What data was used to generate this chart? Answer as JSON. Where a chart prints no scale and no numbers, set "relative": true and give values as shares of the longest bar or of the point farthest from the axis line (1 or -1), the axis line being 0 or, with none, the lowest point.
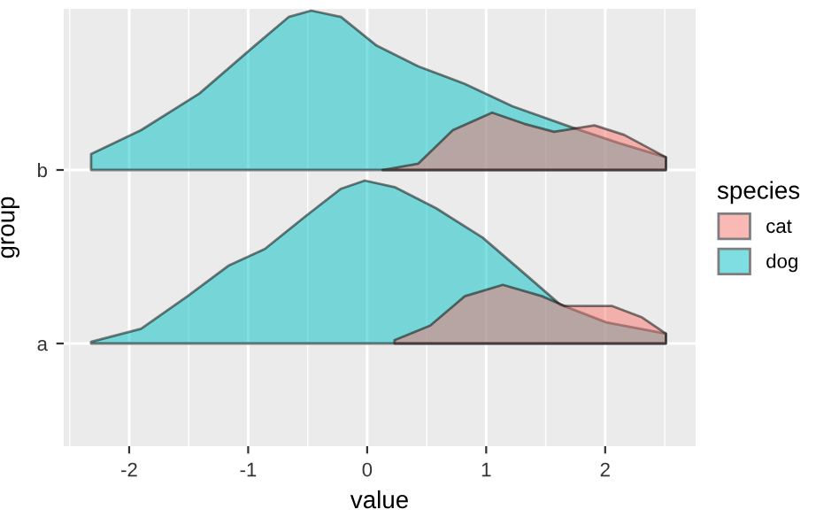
{
  "chart_data": [
    {
      "type": "area",
      "relative": true,
      "ylabel": "group",
      "y_categories": [
        "b"
      ],
      "legend_title": "species",
      "legend": "right",
      "grid": true,
      "tick_labels": "y",
      "xlim": [
        -2.55,
        2.76
      ],
      "xticks": [
        -2,
        -1,
        0,
        1,
        2
      ],
      "series": [
        {
          "name": "dog",
          "color": "#00bfc4",
          "x": [
            -2.32,
            -1.9,
            -1.41,
            -0.96,
            -0.66,
            -0.47,
            -0.22,
            0.08,
            0.43,
            0.82,
            1.22,
            1.71,
            2.11,
            2.51
          ],
          "values": [
            0.1,
            0.25,
            0.48,
            0.77,
            0.96,
            1,
            0.96,
            0.78,
            0.65,
            0.54,
            0.4,
            0.27,
            0.17,
            0.08
          ]
        },
        {
          "name": "cat",
          "color": "#f8766d",
          "x": [
            0.13,
            0.43,
            0.72,
            1.05,
            1.32,
            1.57,
            1.91,
            2.16,
            2.51
          ],
          "values": [
            0,
            0.04,
            0.25,
            0.36,
            0.29,
            0.24,
            0.28,
            0.22,
            0.08
          ]
        }
      ]
    },
    {
      "type": "area",
      "relative": true,
      "xlabel": "value",
      "y_categories": [
        "a"
      ],
      "grid": true,
      "xlim": [
        -2.55,
        2.76
      ],
      "xticks": [
        -2,
        -1,
        0,
        1,
        2
      ],
      "series": [
        {
          "name": "dog",
          "color": "#00bfc4",
          "x": [
            -2.32,
            -1.9,
            -1.51,
            -1.16,
            -0.86,
            -0.52,
            -0.22,
            -0.02,
            0.23,
            0.58,
            0.97,
            1.32,
            1.62,
            2.01,
            2.51
          ],
          "values": [
            0.01,
            0.09,
            0.29,
            0.48,
            0.58,
            0.78,
            0.95,
            1,
            0.96,
            0.83,
            0.65,
            0.43,
            0.24,
            0.13,
            0.06
          ]
        },
        {
          "name": "cat",
          "color": "#f8766d",
          "x": [
            0.23,
            0.53,
            0.82,
            1.14,
            1.47,
            1.66,
            2.06,
            2.31,
            2.51
          ],
          "values": [
            0.02,
            0.11,
            0.29,
            0.36,
            0.29,
            0.23,
            0.23,
            0.16,
            0.06
          ]
        }
      ]
    }
  ]
}
